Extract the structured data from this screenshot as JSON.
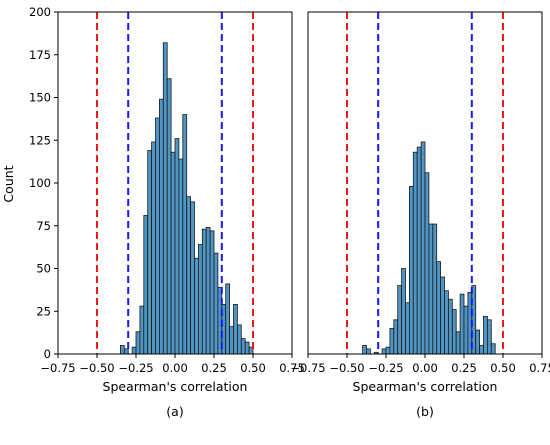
{
  "chart_data": [
    {
      "type": "bar",
      "caption": "(a)",
      "xlabel": "Spearman's correlation",
      "ylabel": "Count",
      "xlim": [
        -0.75,
        0.75
      ],
      "ylim": [
        0,
        200
      ],
      "xticks": [
        -0.75,
        -0.5,
        -0.25,
        0.0,
        0.25,
        0.5,
        0.75
      ],
      "xtick_labels": [
        "−0.75",
        "−0.50",
        "−0.25",
        "0.00",
        "0.25",
        "0.50",
        "0.75"
      ],
      "yticks": [
        0,
        25,
        50,
        75,
        100,
        125,
        150,
        175,
        200
      ],
      "ytick_labels": [
        "0",
        "25",
        "50",
        "75",
        "100",
        "125",
        "150",
        "175",
        "200"
      ],
      "bin_width": 0.025,
      "bins_start": [
        -0.35,
        -0.325,
        -0.3,
        -0.275,
        -0.25,
        -0.225,
        -0.2,
        -0.175,
        -0.15,
        -0.125,
        -0.1,
        -0.075,
        -0.05,
        -0.025,
        0.0,
        0.025,
        0.05,
        0.075,
        0.1,
        0.125,
        0.15,
        0.175,
        0.2,
        0.225,
        0.25,
        0.275,
        0.3,
        0.325,
        0.35,
        0.375,
        0.4,
        0.425,
        0.45,
        0.475
      ],
      "counts": [
        5,
        3,
        0,
        4,
        13,
        28,
        81,
        119,
        124,
        138,
        149,
        182,
        161,
        118,
        126,
        114,
        140,
        92,
        89,
        56,
        64,
        73,
        74,
        72,
        59,
        39,
        29,
        41,
        16,
        29,
        17,
        9,
        7,
        4
      ],
      "grid": false,
      "vlines": [
        {
          "x": -0.5,
          "color": "#ee1a1a",
          "style": "dashed"
        },
        {
          "x": 0.5,
          "color": "#ee1a1a",
          "style": "dashed"
        },
        {
          "x": -0.3,
          "color": "#1a1aee",
          "style": "dashed"
        },
        {
          "x": 0.3,
          "color": "#1a1aee",
          "style": "dashed"
        }
      ],
      "bar_color": "#5096c4"
    },
    {
      "type": "bar",
      "caption": "(b)",
      "xlabel": "Spearman's correlation",
      "ylabel": "",
      "xlim": [
        -0.75,
        0.75
      ],
      "ylim": [
        0,
        200
      ],
      "xticks": [
        -0.75,
        -0.5,
        -0.25,
        0.0,
        0.25,
        0.5,
        0.75
      ],
      "xtick_labels": [
        "−0.75",
        "−0.50",
        "−0.25",
        "0.00",
        "0.25",
        "0.50",
        "0.75"
      ],
      "bin_width": 0.025,
      "bins_start": [
        -0.4,
        -0.375,
        -0.35,
        -0.325,
        -0.3,
        -0.275,
        -0.25,
        -0.225,
        -0.2,
        -0.175,
        -0.15,
        -0.125,
        -0.1,
        -0.075,
        -0.05,
        -0.025,
        0.0,
        0.025,
        0.05,
        0.075,
        0.1,
        0.125,
        0.15,
        0.175,
        0.2,
        0.225,
        0.25,
        0.275,
        0.3,
        0.325,
        0.35,
        0.375,
        0.4,
        0.425,
        0.45,
        0.475
      ],
      "counts": [
        5,
        3,
        0,
        1,
        0,
        3,
        4,
        15,
        20,
        40,
        50,
        30,
        98,
        118,
        121,
        124,
        106,
        76,
        76,
        54,
        45,
        37,
        32,
        26,
        13,
        35,
        28,
        36,
        40,
        14,
        5,
        22,
        20,
        6,
        0,
        0
      ],
      "grid": false,
      "vlines": [
        {
          "x": -0.5,
          "color": "#ee1a1a",
          "style": "dashed"
        },
        {
          "x": 0.5,
          "color": "#ee1a1a",
          "style": "dashed"
        },
        {
          "x": -0.3,
          "color": "#1a1aee",
          "style": "dashed"
        },
        {
          "x": 0.3,
          "color": "#1a1aee",
          "style": "dashed"
        }
      ],
      "bar_color": "#5096c4"
    }
  ]
}
